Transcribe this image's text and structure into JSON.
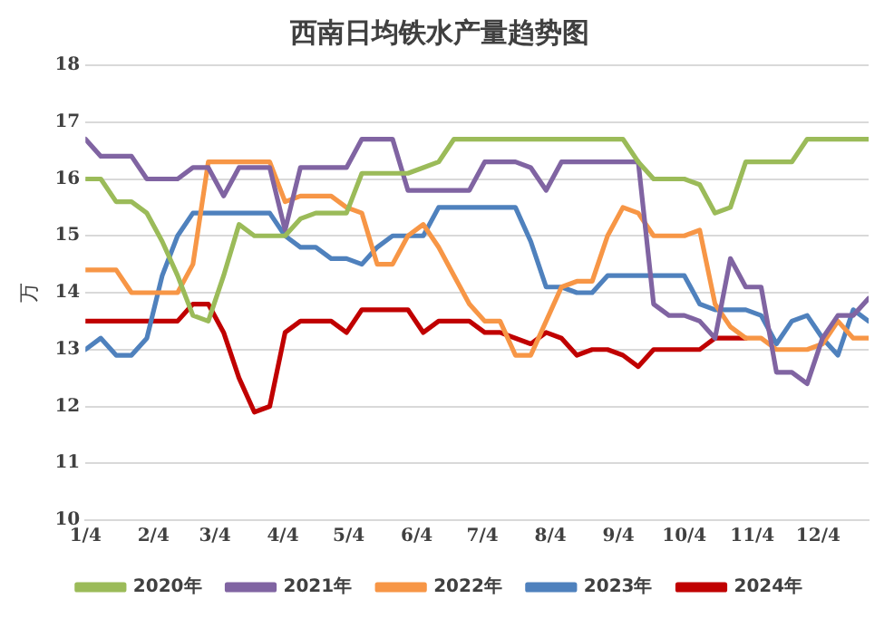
{
  "chart_data": {
    "type": "line",
    "title": "西南日均铁水产量趋势图",
    "ylabel": "万",
    "x": [
      "--01-04",
      "--01-11",
      "--01-18",
      "--01-25",
      "--02-01",
      "--02-08",
      "--02-15",
      "--02-22",
      "--03-01",
      "--03-08",
      "--03-15",
      "--03-22",
      "--03-29",
      "--04-05",
      "--04-12",
      "--04-19",
      "--04-26",
      "--05-03",
      "--05-10",
      "--05-17",
      "--05-24",
      "--05-31",
      "--06-07",
      "--06-14",
      "--06-21",
      "--06-28",
      "--07-05",
      "--07-12",
      "--07-19",
      "--07-26",
      "--08-02",
      "--08-09",
      "--08-16",
      "--08-23",
      "--08-30",
      "--09-06",
      "--09-13",
      "--09-20",
      "--09-27",
      "--10-04",
      "--10-11",
      "--10-18",
      "--10-25",
      "--11-01",
      "--11-08",
      "--11-15",
      "--11-22",
      "--11-29",
      "--12-06",
      "--12-13",
      "--12-20",
      "--12-27"
    ],
    "xlim": [
      "--01-04",
      "--12-27"
    ],
    "xticks": [
      {
        "value": "--01-04",
        "label": "1/4"
      },
      {
        "value": "--02-04",
        "label": "2/4"
      },
      {
        "value": "--03-04",
        "label": "3/4"
      },
      {
        "value": "--04-04",
        "label": "4/4"
      },
      {
        "value": "--05-04",
        "label": "5/4"
      },
      {
        "value": "--06-04",
        "label": "6/4"
      },
      {
        "value": "--07-04",
        "label": "7/4"
      },
      {
        "value": "--08-04",
        "label": "8/4"
      },
      {
        "value": "--09-04",
        "label": "9/4"
      },
      {
        "value": "--10-04",
        "label": "10/4"
      },
      {
        "value": "--11-04",
        "label": "11/4"
      },
      {
        "value": "--12-04",
        "label": "12/4"
      }
    ],
    "ylim": [
      10,
      18
    ],
    "yticks": [
      10,
      11,
      12,
      13,
      14,
      15,
      16,
      17,
      18
    ],
    "grid": "y",
    "legend": "bottom",
    "marker": "none",
    "line_style": "solid",
    "series": [
      {
        "name": "2020年",
        "color": "#9bbb59",
        "values": [
          16.0,
          16.0,
          15.6,
          15.6,
          15.4,
          14.9,
          14.3,
          13.6,
          13.5,
          14.3,
          15.2,
          15.0,
          15.0,
          15.0,
          15.3,
          15.4,
          15.4,
          15.4,
          16.1,
          16.1,
          16.1,
          16.1,
          16.2,
          16.3,
          16.7,
          16.7,
          16.7,
          16.7,
          16.7,
          16.7,
          16.7,
          16.7,
          16.7,
          16.7,
          16.7,
          16.7,
          16.3,
          16.0,
          16.0,
          16.0,
          15.9,
          15.4,
          15.5,
          16.3,
          16.3,
          16.3,
          16.3,
          16.7,
          16.7,
          16.7,
          16.7,
          16.7
        ]
      },
      {
        "name": "2021年",
        "color": "#8064a2",
        "values": [
          16.7,
          16.4,
          16.4,
          16.4,
          16.0,
          16.0,
          16.0,
          16.2,
          16.2,
          15.7,
          16.2,
          16.2,
          16.2,
          15.1,
          16.2,
          16.2,
          16.2,
          16.2,
          16.7,
          16.7,
          16.7,
          15.8,
          15.8,
          15.8,
          15.8,
          15.8,
          16.3,
          16.3,
          16.3,
          16.2,
          15.8,
          16.3,
          16.3,
          16.3,
          16.3,
          16.3,
          16.3,
          13.8,
          13.6,
          13.6,
          13.5,
          13.2,
          14.6,
          14.1,
          14.1,
          12.6,
          12.6,
          12.4,
          13.2,
          13.6,
          13.6,
          13.9
        ]
      },
      {
        "name": "2022年",
        "color": "#f79646",
        "values": [
          14.4,
          14.4,
          14.4,
          14.0,
          14.0,
          14.0,
          14.0,
          14.5,
          16.3,
          16.3,
          16.3,
          16.3,
          16.3,
          15.6,
          15.7,
          15.7,
          15.7,
          15.5,
          15.4,
          14.5,
          14.5,
          15.0,
          15.2,
          14.8,
          14.3,
          13.8,
          13.5,
          13.5,
          12.9,
          12.9,
          13.5,
          14.1,
          14.2,
          14.2,
          15.0,
          15.5,
          15.4,
          15.0,
          15.0,
          15.0,
          15.1,
          13.8,
          13.4,
          13.2,
          13.2,
          13.0,
          13.0,
          13.0,
          13.1,
          13.5,
          13.2,
          13.2
        ]
      },
      {
        "name": "2023年",
        "color": "#4f81bd",
        "values": [
          13.0,
          13.2,
          12.9,
          12.9,
          13.2,
          14.3,
          15.0,
          15.4,
          15.4,
          15.4,
          15.4,
          15.4,
          15.4,
          15.0,
          14.8,
          14.8,
          14.6,
          14.6,
          14.5,
          14.8,
          15.0,
          15.0,
          15.0,
          15.5,
          15.5,
          15.5,
          15.5,
          15.5,
          15.5,
          14.9,
          14.1,
          14.1,
          14.0,
          14.0,
          14.3,
          14.3,
          14.3,
          14.3,
          14.3,
          14.3,
          13.8,
          13.7,
          13.7,
          13.7,
          13.6,
          13.1,
          13.5,
          13.6,
          13.2,
          12.9,
          13.7,
          13.5
        ]
      },
      {
        "name": "2024年",
        "color": "#c00000",
        "values": [
          13.5,
          13.5,
          13.5,
          13.5,
          13.5,
          13.5,
          13.5,
          13.8,
          13.8,
          13.3,
          12.5,
          11.9,
          12.0,
          13.3,
          13.5,
          13.5,
          13.5,
          13.3,
          13.7,
          13.7,
          13.7,
          13.7,
          13.3,
          13.5,
          13.5,
          13.5,
          13.3,
          13.3,
          13.2,
          13.1,
          13.3,
          13.2,
          12.9,
          13.0,
          13.0,
          12.9,
          12.7,
          13.0,
          13.0,
          13.0,
          13.0,
          13.2,
          13.2,
          13.2,
          null,
          null,
          null,
          null,
          null,
          null,
          null,
          null
        ]
      }
    ]
  }
}
